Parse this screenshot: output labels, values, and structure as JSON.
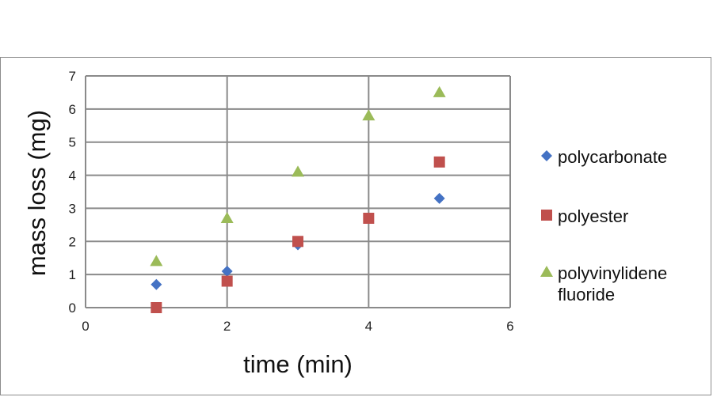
{
  "chart_data": {
    "type": "scatter",
    "title": "",
    "xlabel": "time (min)",
    "ylabel": "mass loss (mg)",
    "xlim": [
      0,
      6
    ],
    "ylim": [
      0,
      7
    ],
    "x_ticks": [
      0,
      2,
      4,
      6
    ],
    "y_ticks": [
      0,
      1,
      2,
      3,
      4,
      5,
      6,
      7
    ],
    "grid": true,
    "legend_position": "right",
    "series": [
      {
        "name": "polycarbonate",
        "marker": "diamond",
        "color": "#4472C4",
        "points": [
          [
            1,
            0.7
          ],
          [
            2,
            1.1
          ],
          [
            3,
            1.9
          ],
          [
            5,
            3.3
          ]
        ]
      },
      {
        "name": "polyester",
        "marker": "square",
        "color": "#C0504D",
        "points": [
          [
            1,
            0.0
          ],
          [
            2,
            0.8
          ],
          [
            3,
            2.0
          ],
          [
            4,
            2.7
          ],
          [
            5,
            4.4
          ]
        ]
      },
      {
        "name": "polyvinylidene fluoride",
        "legend_lines": [
          "polyvinylidene",
          "fluoride"
        ],
        "marker": "triangle",
        "color": "#9BBB59",
        "points": [
          [
            1,
            1.4
          ],
          [
            2,
            2.7
          ],
          [
            3,
            4.1
          ],
          [
            4,
            5.8
          ],
          [
            5,
            6.5
          ]
        ]
      }
    ]
  }
}
